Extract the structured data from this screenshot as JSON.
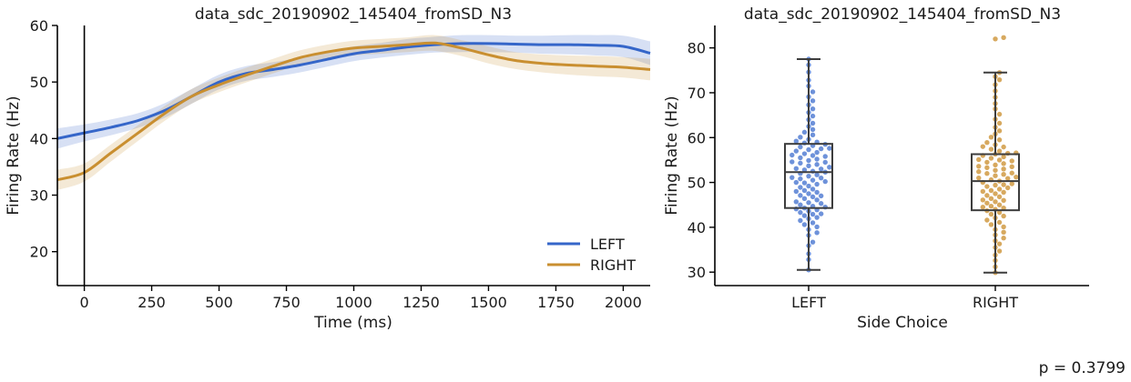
{
  "colors": {
    "left": "#3566c9",
    "right": "#c98f30",
    "left_light": "#5e86d6",
    "right_light": "#d3a04e",
    "box": "#3d3d3d"
  },
  "p_value_text": "p = 0.3799",
  "chart_data": [
    {
      "type": "line",
      "title": "data_sdc_20190902_145404_fromSD_N3",
      "xlabel": "Time (ms)",
      "ylabel": "Firing Rate (Hz)",
      "xlim": [
        -100,
        2100
      ],
      "ylim": [
        14,
        60
      ],
      "xticks": [
        0,
        250,
        500,
        750,
        1000,
        1250,
        1500,
        1750,
        2000
      ],
      "yticks": [
        20,
        30,
        40,
        50,
        60
      ],
      "vline_x": 0,
      "legend": "lower-right",
      "x": [
        -100,
        0,
        100,
        200,
        300,
        400,
        500,
        600,
        700,
        800,
        900,
        1000,
        1100,
        1200,
        1300,
        1400,
        1500,
        1600,
        1700,
        1800,
        1900,
        2000,
        2100
      ],
      "series": [
        {
          "name": "LEFT",
          "color": "#3566c9",
          "values": [
            40.0,
            41.0,
            42.0,
            43.2,
            45.0,
            47.5,
            50.0,
            51.5,
            52.2,
            53.0,
            54.0,
            55.0,
            55.6,
            56.2,
            56.6,
            56.8,
            56.8,
            56.7,
            56.6,
            56.6,
            56.5,
            56.3,
            55.1
          ],
          "band": [
            1.8,
            1.5,
            1.4,
            1.3,
            1.3,
            1.3,
            1.3,
            1.3,
            1.3,
            1.3,
            1.3,
            1.3,
            1.3,
            1.4,
            1.4,
            1.5,
            1.5,
            1.5,
            1.6,
            1.7,
            1.8,
            1.9,
            2.1
          ]
        },
        {
          "name": "RIGHT",
          "color": "#c98f30",
          "values": [
            32.7,
            34.0,
            37.5,
            41.0,
            44.5,
            47.5,
            49.5,
            51.2,
            52.8,
            54.3,
            55.3,
            56.0,
            56.3,
            56.6,
            56.9,
            56.0,
            54.8,
            53.8,
            53.3,
            53.0,
            52.8,
            52.6,
            52.2
          ],
          "band": [
            1.8,
            1.6,
            1.5,
            1.4,
            1.3,
            1.3,
            1.3,
            1.3,
            1.3,
            1.3,
            1.3,
            1.3,
            1.3,
            1.3,
            1.4,
            1.4,
            1.5,
            1.5,
            1.6,
            1.7,
            1.8,
            1.8,
            1.9
          ]
        }
      ]
    },
    {
      "type": "box",
      "title": "data_sdc_20190902_145404_fromSD_N3",
      "xlabel": "Side Choice",
      "ylabel": "Firing Rate (Hz)",
      "categories": [
        "LEFT",
        "RIGHT"
      ],
      "ylim": [
        27,
        85
      ],
      "yticks": [
        30,
        40,
        50,
        60,
        70,
        80
      ],
      "boxes": [
        {
          "category": "LEFT",
          "whisker_low": 30.5,
          "q1": 44.3,
          "median": 52.3,
          "q3": 58.6,
          "whisker_high": 77.5,
          "color": "#5e86d6"
        },
        {
          "category": "RIGHT",
          "whisker_low": 29.9,
          "q1": 43.8,
          "median": 50.3,
          "q3": 56.3,
          "whisker_high": 74.5,
          "color": "#d3a04e"
        }
      ],
      "points": {
        "LEFT": [
          30.5,
          32.8,
          34.1,
          35.9,
          36.7,
          38.2,
          38.8,
          39.5,
          40.1,
          40.6,
          41.0,
          41.5,
          41.9,
          42.2,
          42.6,
          42.9,
          43.3,
          43.6,
          43.9,
          44.1,
          44.3,
          44.5,
          44.7,
          45.0,
          45.3,
          45.7,
          46.1,
          46.4,
          46.8,
          47.1,
          47.5,
          47.8,
          48.2,
          48.5,
          48.9,
          49.2,
          49.6,
          49.9,
          50.2,
          50.5,
          50.8,
          51.1,
          51.4,
          51.7,
          52.0,
          52.3,
          52.5,
          52.8,
          53.1,
          53.4,
          53.7,
          54.0,
          54.3,
          54.6,
          54.9,
          55.2,
          55.5,
          55.8,
          56.1,
          56.4,
          56.7,
          57.0,
          57.3,
          57.6,
          57.9,
          58.2,
          58.5,
          58.8,
          59.2,
          59.6,
          60.1,
          60.6,
          61.2,
          61.8,
          62.5,
          63.2,
          64.0,
          64.8,
          65.6,
          66.4,
          67.3,
          68.2,
          69.1,
          70.2,
          71.5,
          72.8,
          74.6,
          76.2,
          77.5,
          43.0,
          45.5,
          47.0,
          48.0,
          50.0,
          51.0,
          53.0,
          54.5,
          56.0,
          57.5,
          59.0
        ],
        "RIGHT": [
          29.9,
          31.2,
          32.6,
          33.8,
          34.7,
          35.5,
          36.3,
          37.0,
          37.6,
          38.3,
          38.9,
          39.5,
          40.1,
          40.6,
          41.1,
          41.6,
          42.1,
          42.5,
          42.9,
          43.3,
          43.7,
          44.0,
          44.3,
          44.7,
          45.0,
          45.4,
          45.7,
          46.1,
          46.4,
          46.8,
          47.1,
          47.5,
          47.8,
          48.2,
          48.5,
          48.8,
          49.1,
          49.4,
          49.7,
          50.0,
          50.3,
          50.6,
          50.9,
          51.2,
          51.5,
          51.8,
          52.1,
          52.4,
          52.7,
          53.0,
          53.3,
          53.6,
          53.9,
          54.2,
          54.5,
          54.8,
          55.1,
          55.4,
          55.7,
          56.0,
          56.3,
          56.6,
          57.0,
          57.4,
          57.9,
          58.4,
          58.9,
          59.5,
          60.1,
          60.8,
          61.5,
          62.3,
          63.2,
          64.1,
          65.2,
          66.4,
          67.6,
          69.0,
          70.4,
          71.8,
          72.9,
          73.6,
          74.5,
          82.0,
          82.3,
          44.5,
          46.0,
          48.0,
          49.5,
          51.0,
          52.0,
          53.5,
          55.0,
          56.5,
          58.0
        ]
      }
    }
  ]
}
